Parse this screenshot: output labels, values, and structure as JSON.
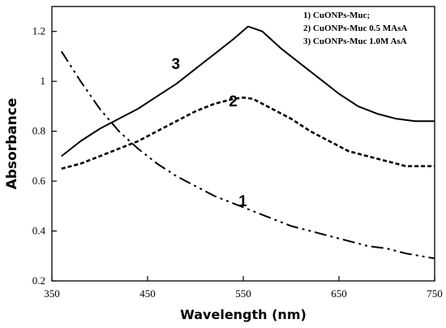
{
  "chart_data": {
    "type": "line",
    "xlabel": "Wavelength (nm)",
    "ylabel": "Absorbance",
    "xlim": [
      350,
      750
    ],
    "ylim": [
      0.2,
      1.3
    ],
    "x_ticks": [
      350,
      450,
      550,
      650,
      750
    ],
    "y_ticks": [
      0.2,
      0.4,
      0.6,
      0.8,
      1,
      1.2
    ],
    "y_tick_labels": [
      "0.2",
      "0.4",
      "0.6",
      "0.8",
      "1",
      "1.2"
    ],
    "grid": false,
    "legend": {
      "placement": "top-right",
      "entries": [
        "1) CuONPs-Muc;",
        "2) CuONPs-Muc 0.5 MAsA",
        "3) CuONPs-Muc 1.0M AsA"
      ]
    },
    "series": [
      {
        "label": "1",
        "style": "dash-dot-dot",
        "label_at": [
          545,
          0.5
        ],
        "x": [
          360,
          380,
          400,
          420,
          440,
          460,
          480,
          500,
          520,
          540,
          560,
          580,
          600,
          620,
          640,
          660,
          680,
          700,
          720,
          750
        ],
        "y": [
          1.12,
          1.0,
          0.89,
          0.8,
          0.73,
          0.67,
          0.62,
          0.58,
          0.54,
          0.51,
          0.48,
          0.45,
          0.42,
          0.4,
          0.38,
          0.36,
          0.34,
          0.33,
          0.31,
          0.29
        ]
      },
      {
        "label": "2",
        "style": "dashed",
        "label_at": [
          535,
          0.9
        ],
        "x": [
          360,
          380,
          400,
          420,
          440,
          460,
          480,
          500,
          520,
          540,
          550,
          560,
          580,
          600,
          620,
          640,
          660,
          680,
          700,
          720,
          750
        ],
        "y": [
          0.65,
          0.67,
          0.7,
          0.73,
          0.76,
          0.8,
          0.84,
          0.88,
          0.91,
          0.93,
          0.935,
          0.93,
          0.89,
          0.85,
          0.8,
          0.76,
          0.72,
          0.7,
          0.68,
          0.66,
          0.66
        ]
      },
      {
        "label": "3",
        "style": "solid",
        "label_at": [
          475,
          1.05
        ],
        "x": [
          360,
          380,
          400,
          420,
          440,
          460,
          480,
          500,
          520,
          540,
          555,
          570,
          590,
          610,
          630,
          650,
          670,
          690,
          710,
          730,
          750
        ],
        "y": [
          0.7,
          0.76,
          0.81,
          0.85,
          0.89,
          0.94,
          0.99,
          1.05,
          1.11,
          1.17,
          1.22,
          1.2,
          1.13,
          1.07,
          1.01,
          0.95,
          0.9,
          0.87,
          0.85,
          0.84,
          0.84
        ]
      }
    ]
  }
}
